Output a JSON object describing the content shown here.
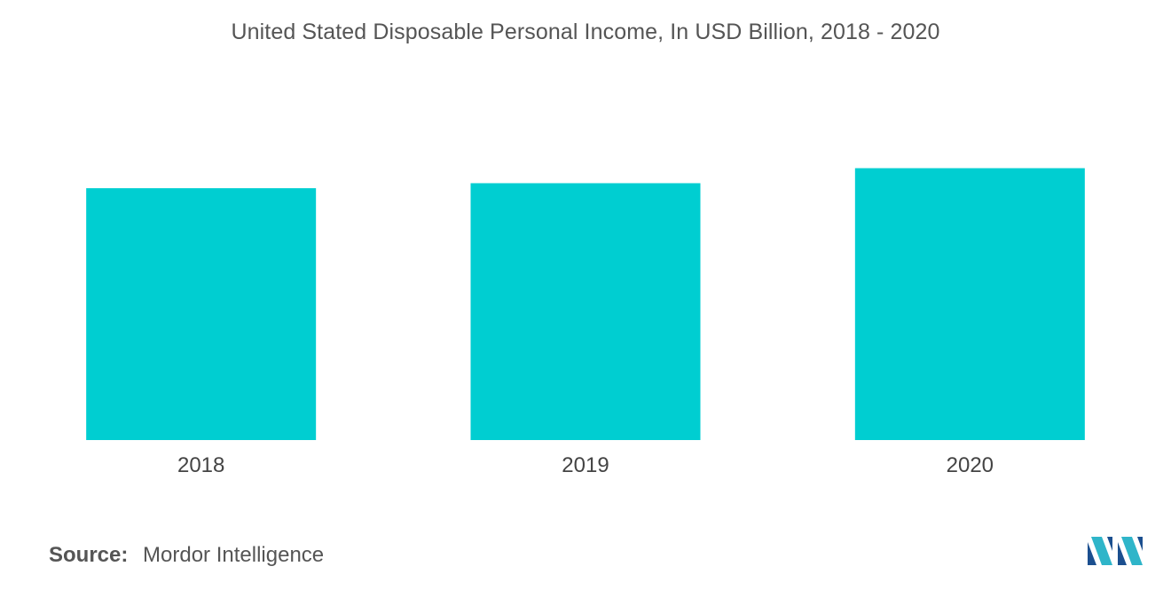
{
  "chart_data": {
    "type": "bar",
    "title": "United Stated Disposable Personal Income, In USD Billion, 2018 - 2020",
    "categories": [
      "2018",
      "2019",
      "2020"
    ],
    "values": [
      15100,
      15400,
      16300
    ],
    "ylim": [
      0,
      20000
    ],
    "grid": false,
    "legend": "none",
    "bar_color": "#00CED1"
  },
  "source": {
    "label": "Source:",
    "text": "Mordor Intelligence"
  },
  "logo": {
    "icon": "mordor-intelligence-logo-icon",
    "colors": [
      "#1B4F8F",
      "#2FB5C9"
    ]
  }
}
